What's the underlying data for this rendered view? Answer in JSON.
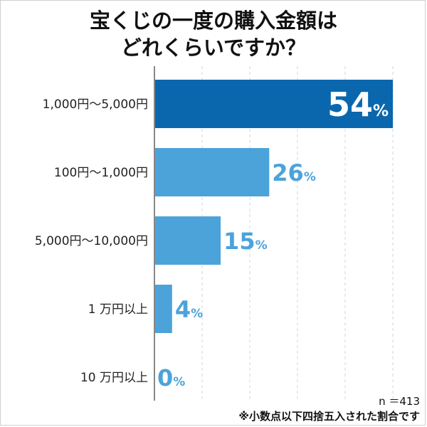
{
  "title_lines": [
    "宝くじの一度の購入金額は",
    "どれくらいですか？"
  ],
  "sample_note": "n ＝413",
  "rounding_note": "※小数点以下四捨五入された割合です",
  "colors": {
    "highlight_bar": "#0a67ad",
    "bar": "#4ca3da",
    "highlight_label": "#ffffff",
    "label": "#4ca3da",
    "grid": "#d4d4d4",
    "axis": "#888888"
  },
  "chart_data": {
    "type": "bar",
    "orientation": "horizontal",
    "title": "宝くじの一度の購入金額はどれくらいですか？",
    "categories": [
      "1,000円～5,000円",
      "100円～1,000円",
      "5,000円～10,000円",
      "1 万円以上",
      "10 万円以上"
    ],
    "values": [
      54,
      26,
      15,
      4,
      0
    ],
    "value_suffix": "%",
    "value_labels": [
      "54",
      "26",
      "15",
      "4",
      "0"
    ],
    "highlight_index": 0,
    "xlim": [
      0,
      54
    ],
    "grid": true,
    "legend": "none"
  }
}
